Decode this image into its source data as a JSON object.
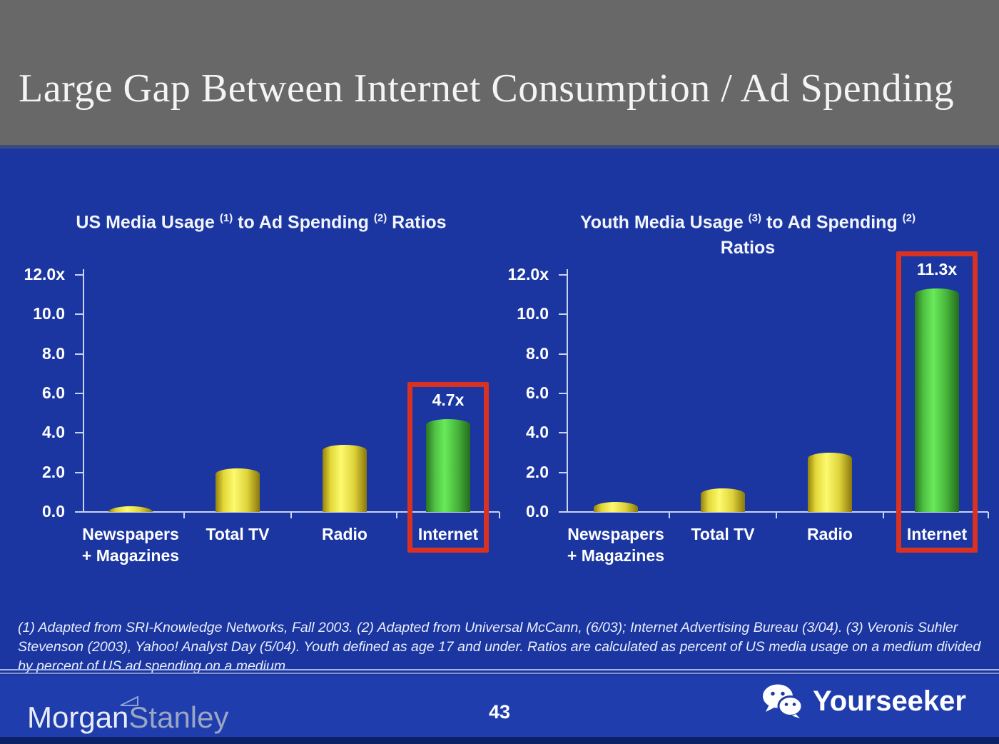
{
  "header": {
    "title": "Large Gap Between Internet Consumption / Ad Spending"
  },
  "chart_data": [
    {
      "type": "bar",
      "title": "US Media Usage (1) to Ad Spending (2) Ratios",
      "title_lines": [
        [
          {
            "t": "US Media Usage "
          },
          {
            "sup": "(1)"
          },
          {
            "t": " to Ad Spending "
          },
          {
            "sup": "(2)"
          },
          {
            "t": " Ratios"
          }
        ]
      ],
      "categories": [
        [
          "Newspapers",
          "+ Magazines"
        ],
        [
          "Total TV"
        ],
        [
          "Radio"
        ],
        [
          "Internet"
        ]
      ],
      "values": [
        0.3,
        2.2,
        3.4,
        4.7
      ],
      "bar_colors": [
        "yellow",
        "yellow",
        "yellow",
        "green"
      ],
      "data_label": {
        "index": 3,
        "text": "4.7x"
      },
      "highlight_index": 3,
      "y_ticks": [
        {
          "v": 12,
          "label": "12.0x"
        },
        {
          "v": 10,
          "label": "10.0"
        },
        {
          "v": 8,
          "label": "8.0"
        },
        {
          "v": 6,
          "label": "6.0"
        },
        {
          "v": 4,
          "label": "4.0"
        },
        {
          "v": 2,
          "label": "2.0"
        },
        {
          "v": 0,
          "label": "0.0"
        }
      ],
      "ylim": [
        0,
        12
      ],
      "xlabel": "",
      "ylabel": "",
      "grid": false,
      "legend": false
    },
    {
      "type": "bar",
      "title": "Youth Media Usage (3) to Ad Spending (2) Ratios",
      "title_lines": [
        [
          {
            "t": "Youth Media Usage "
          },
          {
            "sup": "(3)"
          },
          {
            "t": " to Ad Spending "
          },
          {
            "sup": "(2)"
          }
        ],
        [
          {
            "t": "Ratios"
          }
        ]
      ],
      "categories": [
        [
          "Newspapers",
          "+ Magazines"
        ],
        [
          "Total TV"
        ],
        [
          "Radio"
        ],
        [
          "Internet"
        ]
      ],
      "values": [
        0.5,
        1.2,
        3.0,
        11.3
      ],
      "bar_colors": [
        "yellow",
        "yellow",
        "yellow",
        "green"
      ],
      "data_label": {
        "index": 3,
        "text": "11.3x"
      },
      "highlight_index": 3,
      "y_ticks": [
        {
          "v": 12,
          "label": "12.0x"
        },
        {
          "v": 10,
          "label": "10.0"
        },
        {
          "v": 8,
          "label": "8.0"
        },
        {
          "v": 6,
          "label": "6.0"
        },
        {
          "v": 4,
          "label": "4.0"
        },
        {
          "v": 2,
          "label": "2.0"
        },
        {
          "v": 0,
          "label": "0.0"
        }
      ],
      "ylim": [
        0,
        12
      ],
      "xlabel": "",
      "ylabel": "",
      "grid": false,
      "legend": false
    }
  ],
  "footnote": "(1) Adapted from SRI-Knowledge Networks, Fall 2003.  (2) Adapted from Universal McCann, (6/03); Internet Advertising Bureau (3/04). (3) Veronis Suhler Stevenson (2003), Yahoo! Analyst Day (5/04).  Youth defined as age 17 and under.  Ratios are calculated as percent of US media usage on a medium divided by percent of US ad spending on a medium.",
  "footer": {
    "page_number": "43",
    "brand": {
      "word1": "Morgan",
      "word2": "Stanley"
    },
    "partner": "Yourseeker"
  },
  "colors": {
    "background_blue": "#1b36a1",
    "footer_blue": "#1f3dac",
    "header_gray": "#686868",
    "highlight_red": "#d93122",
    "axis_color": "#c9d3f3",
    "bar_yellow_center": "#fdfa6e",
    "bar_yellow_edge": "#93810e",
    "bar_green_center": "#68ea5a",
    "bar_green_edge": "#2a751f",
    "text_white": "#ffffff"
  }
}
